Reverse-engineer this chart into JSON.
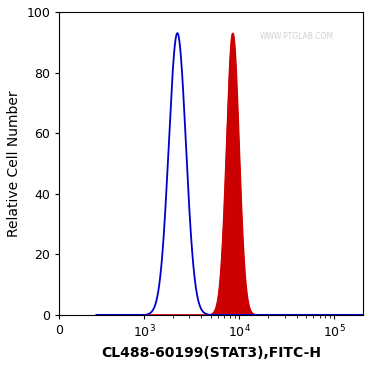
{
  "title": "",
  "xlabel": "CL488-60199(STAT3),FITC-H",
  "ylabel": "Relative Cell Number",
  "ylim": [
    0,
    100
  ],
  "yticks": [
    0,
    20,
    40,
    60,
    80,
    100
  ],
  "watermark": "WWW.PTGLAB.COM",
  "blue_peak_log10_mean": 3.35,
  "blue_peak_log10_std": 0.09,
  "blue_peak_height": 93,
  "red_peak_log10_mean": 3.93,
  "red_peak_log10_std": 0.065,
  "red_peak_height": 93,
  "blue_color": "#0000CC",
  "red_color": "#CC0000",
  "red_fill_color": "#CC0000",
  "xlabel_fontsize": 10,
  "ylabel_fontsize": 10,
  "tick_fontsize": 9,
  "linthresh": 316.0,
  "xlim_left": 0,
  "xlim_right": 200000
}
